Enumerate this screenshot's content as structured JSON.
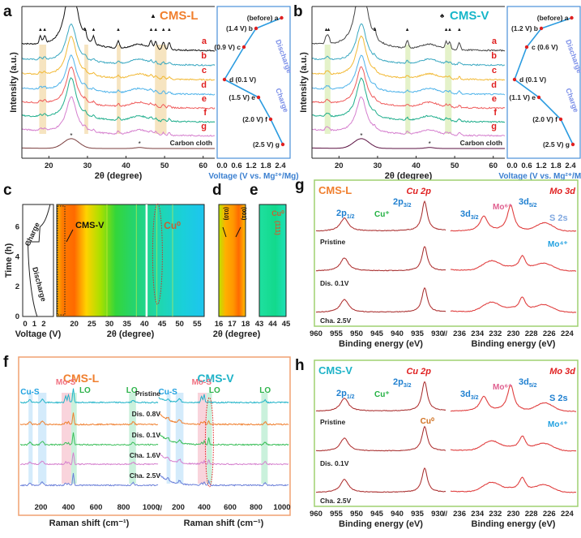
{
  "chart_data": [
    {
      "panel": "a",
      "type": "line",
      "title": "CMS-L",
      "legend_marker": "▲",
      "xlabel": "2θ (degree)",
      "ylabel": "Intensity (a.u.)",
      "xlim": [
        13,
        63
      ],
      "xticks": [
        20,
        30,
        40,
        50,
        60
      ],
      "series": [
        {
          "name": "a",
          "color": "#111111"
        },
        {
          "name": "b",
          "color": "#3aa8c1"
        },
        {
          "name": "c",
          "color": "#f2b935"
        },
        {
          "name": "d",
          "color": "#4fb3ea"
        },
        {
          "name": "e",
          "color": "#ef5b5b"
        },
        {
          "name": "f",
          "color": "#1fae8c"
        },
        {
          "name": "g",
          "color": "#d57fce"
        },
        {
          "name": "Carbon cloth",
          "color": "#7a3d3d"
        }
      ],
      "peak_markers_2theta": [
        17.8,
        18.9,
        29.4,
        31.6,
        38.0,
        46.5,
        47.7,
        49.7,
        51.2
      ],
      "carbon_peaks_2theta": [
        25.8,
        43.5
      ],
      "highlight_bands_2theta": [
        [
          17.5,
          19.3
        ],
        [
          29.2,
          30.2
        ],
        [
          37.6,
          38.6
        ],
        [
          47.5,
          50.5
        ]
      ],
      "band_color": "#f5dfb5",
      "side_panel": {
        "xlabel": "Voltage (V vs. Mg²⁺/Mg)",
        "xticks": [
          "0.0",
          "0.6",
          "1.2",
          "1.8",
          "2.4"
        ],
        "xlim": [
          0,
          2.6
        ],
        "points": [
          {
            "label": "(before) a",
            "voltage": 2.45
          },
          {
            "label": "(1.4 V) b",
            "voltage": 1.4
          },
          {
            "label": "(0.9 V) c",
            "voltage": 0.9
          },
          {
            "label": "d (0.1 V)",
            "voltage": 0.1
          },
          {
            "label": "(1.5 V) e",
            "voltage": 1.5
          },
          {
            "label": "(2.0 V) f",
            "voltage": 2.0
          },
          {
            "label": "(2.5 V) g",
            "voltage": 2.5
          }
        ],
        "arrows": [
          "Discharge",
          "Charge"
        ]
      }
    },
    {
      "panel": "b",
      "type": "line",
      "title": "CMS-V",
      "legend_marker": "♣",
      "xlabel": "2θ (degree)",
      "ylabel": "Intensity (a.u.)",
      "xlim": [
        13,
        63
      ],
      "xticks": [
        20,
        30,
        40,
        50,
        60
      ],
      "series": [
        {
          "name": "a",
          "color": "#444444"
        },
        {
          "name": "b",
          "color": "#3aa8c1"
        },
        {
          "name": "c",
          "color": "#f2b935"
        },
        {
          "name": "d",
          "color": "#4fb3ea"
        },
        {
          "name": "e",
          "color": "#ef5b5b"
        },
        {
          "name": "f",
          "color": "#1fae8c"
        },
        {
          "name": "g",
          "color": "#d57fce"
        },
        {
          "name": "Carbon cloth",
          "color": "#5a1040"
        }
      ],
      "peak_markers_2theta": [
        16.7,
        17.3,
        29.3,
        37.7,
        47.8,
        48.7,
        51.2
      ],
      "carbon_peaks_2theta": [
        25.8,
        43.5
      ],
      "highlight_bands_2theta": [
        [
          16.3,
          17.8
        ],
        [
          37.2,
          38.5
        ],
        [
          47.5,
          49.2
        ]
      ],
      "band_color": "#dff0c0",
      "side_panel": {
        "xlabel": "Voltage (V vs. Mg²⁺/Mg)",
        "xticks": [
          "0.0",
          "0.6",
          "1.2",
          "1.8",
          "2.4"
        ],
        "xlim": [
          0,
          2.6
        ],
        "points": [
          {
            "label": "(before) a",
            "voltage": 2.45
          },
          {
            "label": "(1.2 V) b",
            "voltage": 1.2
          },
          {
            "label": "c (0.6 V)",
            "voltage": 0.6
          },
          {
            "label": "d (0.1 V)",
            "voltage": 0.1
          },
          {
            "label": "(1.1 V) e",
            "voltage": 1.1
          },
          {
            "label": "(2.0 V) f",
            "voltage": 2.0
          },
          {
            "label": "(2.5 V) g",
            "voltage": 2.5
          }
        ],
        "arrows": [
          "Discharge",
          "Charge"
        ]
      }
    },
    {
      "panel": "c",
      "type": "heatmap",
      "left_plot": {
        "xlabel": "Voltage (V)",
        "ylabel": "Time (h)",
        "xticks": [
          0,
          1,
          2
        ],
        "yticks": [
          0,
          2,
          4,
          6
        ],
        "ylim": [
          0,
          7.5
        ],
        "labels": [
          "Charge",
          "Discharge"
        ]
      },
      "xlabel": "2θ (degree)",
      "xlim": [
        15,
        57
      ],
      "xticks": [
        20,
        25,
        30,
        35,
        40,
        45,
        50,
        55
      ],
      "annotations": [
        "CMS-V",
        "Cu⁰"
      ]
    },
    {
      "panel": "d",
      "type": "heatmap",
      "xlim": [
        16,
        18
      ],
      "xticks": [
        16,
        17,
        18
      ],
      "annotations": [
        "(010)",
        "(001)"
      ]
    },
    {
      "panel": "e",
      "type": "heatmap",
      "xlim": [
        43,
        45
      ],
      "xticks": [
        43,
        44,
        45
      ],
      "xlabel": "2θ (degree)",
      "annotations": [
        "Cu⁰",
        "(111)"
      ]
    },
    {
      "panel": "f",
      "type": "line",
      "xlabel": "Raman shift (cm⁻¹)",
      "xticks": [
        200,
        400,
        600,
        800,
        1000
      ],
      "xlim": [
        50,
        1050
      ],
      "groups": [
        "CMS-L",
        "CMS-V"
      ],
      "band_labels": [
        "Cu-S",
        "Mo-S",
        "LO",
        "LO"
      ],
      "series": [
        {
          "name": "Pristine",
          "color": "#1fb3c8"
        },
        {
          "name": "Dis. 0.8V",
          "color": "#f07f2e"
        },
        {
          "name": "Dis. 0.1V",
          "color": "#3cbf5a"
        },
        {
          "name": "Cha. 1.6V",
          "color": "#d57fce"
        },
        {
          "name": "Cha. 2.5V",
          "color": "#6a7fd9"
        }
      ]
    },
    {
      "panel": "g",
      "type": "line",
      "title": "CMS-L",
      "regions": [
        "Cu 2p",
        "Mo 3d"
      ],
      "xlabel": "Binding energy (eV)",
      "xticks_cu": [
        960,
        955,
        950,
        945,
        940,
        935,
        930
      ],
      "xticks_mo": [
        236,
        234,
        232,
        230,
        228,
        226,
        224
      ],
      "peak_labels": [
        "2p1/2",
        "2p3/2",
        "Cu⁺",
        "3d3/2",
        "Mo⁶⁺",
        "3d5/2",
        "S 2s",
        "Mo⁴⁺"
      ],
      "series": [
        "Pristine",
        "Dis. 0.1V",
        "Cha. 2.5V"
      ]
    },
    {
      "panel": "h",
      "type": "line",
      "title": "CMS-V",
      "regions": [
        "Cu 2p",
        "Mo 3d"
      ],
      "xlabel": "Binding energy (eV)",
      "xticks_cu": [
        960,
        955,
        950,
        945,
        940,
        935,
        930
      ],
      "xticks_mo": [
        236,
        234,
        232,
        230,
        228,
        226,
        224
      ],
      "peak_labels": [
        "2p1/2",
        "2p3/2",
        "Cu⁺",
        "Cu⁰",
        "3d3/2",
        "Mo⁶⁺",
        "3d5/2",
        "S 2s",
        "Mo⁴⁺"
      ],
      "series": [
        "Pristine",
        "Dis. 0.1V",
        "Cha. 2.5V"
      ]
    }
  ],
  "labels": {
    "a": "a",
    "b": "b",
    "c": "c",
    "d": "d",
    "e": "e",
    "f": "f",
    "g": "g",
    "h": "h",
    "intensity": "Intensity (a.u.)",
    "two_theta": "2θ (degree)",
    "voltage_mg": "Voltage (V vs. Mg²⁺/Mg)",
    "cms_l": "CMS-L",
    "cms_v": "CMS-V",
    "carbon_cloth": "Carbon cloth",
    "discharge": "Discharge",
    "charge": "Charge",
    "time_h": "Time (h)",
    "voltage_v": "Voltage (V)",
    "cu0": "Cu⁰",
    "cu_plus": "Cu⁺",
    "plane_010": "(010)",
    "plane_001": "(001)",
    "plane_111": "(111)",
    "raman": "Raman shift (cm⁻¹)",
    "binding": "Binding energy (eV)",
    "cu2p": "Cu 2p",
    "mo3d": "Mo 3d",
    "p12": "2p",
    "p32": "2p",
    "sub12": "1/2",
    "sub32": "3/2",
    "d32": "3d",
    "d52": "3d",
    "sub_d32": "3/2",
    "sub_d52": "5/2",
    "mo6": "Mo⁶⁺",
    "mo4": "Mo⁴⁺",
    "s2s": "S 2s",
    "cus": "Cu-S",
    "mos": "Mo-S",
    "lo": "LO",
    "pristine": "Pristine",
    "dis08": "Dis. 0.8V",
    "dis01": "Dis. 0.1V",
    "cha16": "Cha. 1.6V",
    "cha25": "Cha. 2.5V"
  }
}
